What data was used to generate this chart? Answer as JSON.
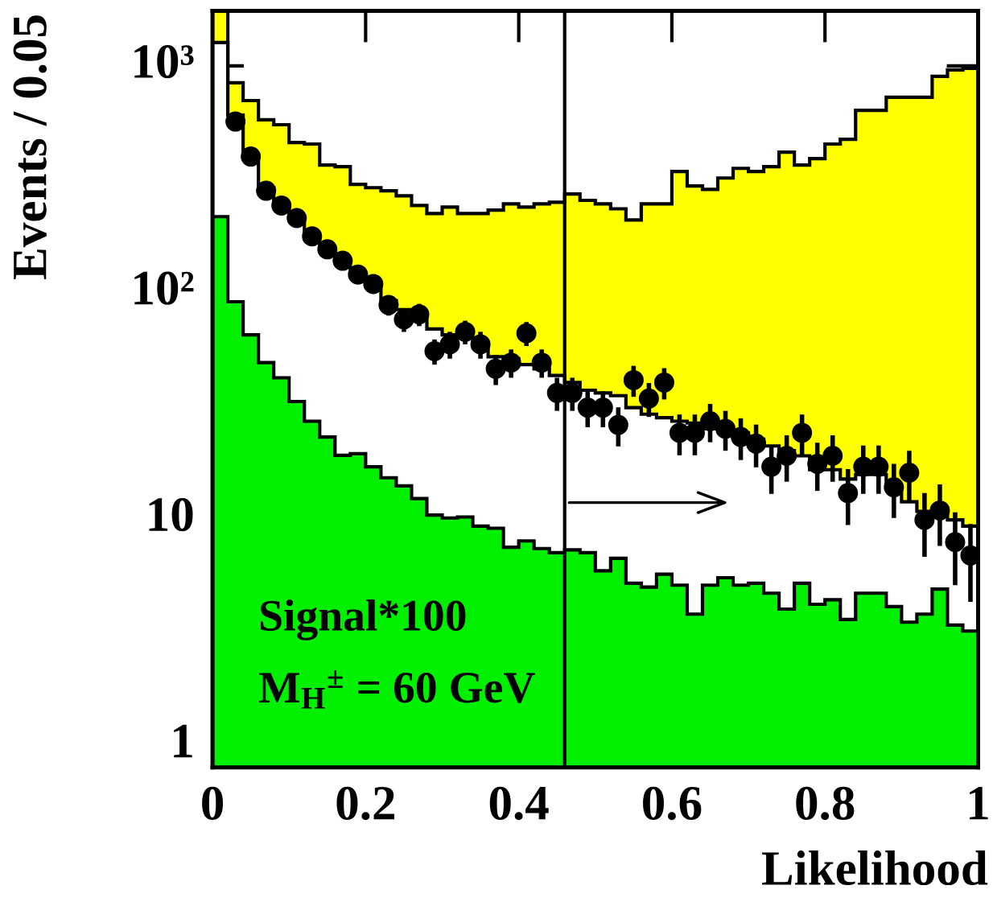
{
  "chart_data": {
    "type": "histogram",
    "xlabel": "Likelihood",
    "ylabel": "Events / 0.05",
    "bins": [
      0,
      0.02,
      0.04,
      0.06,
      0.08,
      0.1,
      0.12,
      0.14,
      0.16,
      0.18,
      0.2,
      0.22,
      0.24,
      0.26,
      0.28,
      0.3,
      0.32,
      0.34,
      0.36,
      0.38,
      0.4,
      0.42,
      0.44,
      0.46,
      0.48,
      0.5,
      0.52,
      0.54,
      0.56,
      0.58,
      0.6,
      0.62,
      0.64,
      0.66,
      0.68,
      0.7,
      0.72,
      0.74,
      0.76,
      0.78,
      0.8,
      0.82,
      0.84,
      0.86,
      0.88,
      0.9,
      0.92,
      0.94,
      0.96,
      0.98,
      1.0
    ],
    "xlim": [
      0,
      1
    ],
    "ylim": [
      0.8,
      1750
    ],
    "log": "y",
    "xticks": [
      0,
      0.2,
      0.4,
      0.6,
      0.8,
      1
    ],
    "yticks": [
      1,
      10,
      {
        "value": 100,
        "label": "10²"
      },
      {
        "value": 1000,
        "label": "10³"
      }
    ],
    "grid": false,
    "marker": "circle",
    "annotations": [
      "Signal*100",
      "M$_{H}$$^{±}$ = 60 GeV"
    ],
    "ref_lines": [
      {
        "axis": "x",
        "value": 0.46,
        "color": "#000000"
      }
    ],
    "series": [
      {
        "color": "#ffff00",
        "values": [
          1750,
          842,
          703,
          578,
          550,
          459,
          452,
          365,
          359,
          300,
          290,
          281,
          267,
          242,
          223,
          238,
          223,
          223,
          231,
          246,
          238,
          246,
          250,
          272,
          255,
          246,
          234,
          209,
          246,
          246,
          342,
          295,
          285,
          320,
          353,
          342,
          359,
          416,
          365,
          390,
          452,
          474,
          637,
          637,
          727,
          727,
          727,
          899,
          960,
          976
        ]
      },
      {
        "color": "#ffffff",
        "values": [
          1268,
          607,
          403,
          290,
          242,
          216,
          177,
          156,
          137,
          120,
          107,
          92,
          84,
          78,
          69,
          65,
          63,
          60,
          52,
          51,
          48,
          46,
          43,
          40,
          37,
          36,
          35,
          31,
          29,
          28,
          27,
          26.5,
          25,
          25,
          24,
          22.5,
          21,
          20,
          19,
          16.5,
          16.5,
          15,
          15.7,
          15.7,
          13.8,
          11.9,
          10.8,
          10.8,
          9.9,
          9.3
        ]
      },
      {
        "color": "#00f000",
        "values": [
          216,
          91,
          65,
          49,
          42,
          33,
          27,
          23,
          19.1,
          19.4,
          17,
          15.2,
          14,
          12.3,
          10.4,
          10.1,
          10.2,
          9.3,
          9.1,
          7.5,
          8.0,
          7.4,
          7.1,
          7.3,
          7.1,
          5.9,
          6.7,
          5.2,
          5.0,
          5.7,
          5.1,
          3.8,
          5.1,
          5.5,
          5.1,
          5.2,
          4.7,
          4.0,
          5.2,
          4.2,
          4.4,
          3.6,
          4.7,
          4.7,
          4.1,
          3.5,
          3.8,
          4.9,
          3.4,
          3.2
        ]
      },
      {
        "type": "scatter",
        "color": "#000000",
        "x": [
          0.03,
          0.05,
          0.07,
          0.09,
          0.11,
          0.13,
          0.15,
          0.17,
          0.19,
          0.21,
          0.23,
          0.25,
          0.27,
          0.29,
          0.31,
          0.33,
          0.35,
          0.37,
          0.39,
          0.41,
          0.43,
          0.45,
          0.47,
          0.49,
          0.51,
          0.53,
          0.55,
          0.57,
          0.59,
          0.61,
          0.63,
          0.65,
          0.67,
          0.69,
          0.71,
          0.73,
          0.75,
          0.77,
          0.79,
          0.81,
          0.83,
          0.85,
          0.87,
          0.89,
          0.91,
          0.93,
          0.95,
          0.97,
          0.99
        ],
        "values": [
          568,
          398,
          281,
          242,
          213,
          177,
          155,
          138,
          120,
          109,
          88,
          76,
          80,
          55,
          59,
          67,
          59,
          46,
          49,
          66,
          49,
          36,
          36,
          31,
          31,
          26,
          41,
          34,
          40,
          24,
          24,
          27,
          25,
          23,
          21.5,
          17,
          19,
          24,
          17.5,
          19,
          13,
          17,
          17,
          13.8,
          16,
          9.9,
          10.9,
          7.9,
          6.9
        ],
        "errors": [
          24,
          20,
          17,
          16,
          15,
          13,
          12,
          12,
          11,
          10,
          9,
          9,
          9,
          7,
          8,
          8,
          8,
          7,
          7,
          8,
          7,
          6,
          6,
          5.6,
          5.6,
          5.1,
          6.4,
          5.8,
          6.3,
          4.9,
          4.9,
          5.2,
          5,
          4.8,
          4.6,
          4.1,
          4.4,
          4.9,
          4.2,
          4.4,
          3.6,
          4.1,
          4.1,
          3.7,
          4,
          3.1,
          3.3,
          2.8,
          2.6
        ]
      }
    ]
  }
}
